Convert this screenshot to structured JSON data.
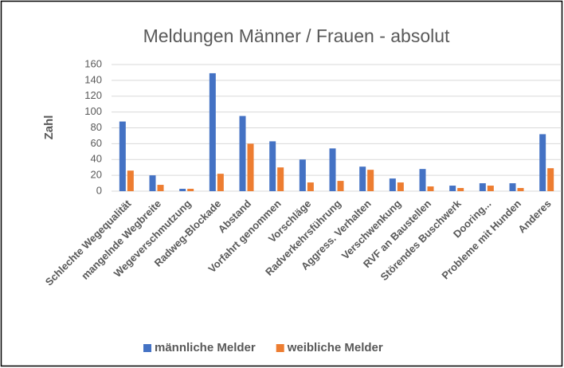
{
  "chart_data": {
    "type": "bar",
    "title": "Meldungen Männer / Frauen - absolut",
    "y_label": "Zahl",
    "categories": [
      "Schlechte Wegequalität",
      "mangelnde Wegbreite",
      "Wegeverschmutzung",
      "Radweg-Blockade",
      "Abstand",
      "Vorfahrt genommen",
      "Vorschläge",
      "Radverkehrsführung",
      "Aggress. Verhalten",
      "Verschwenkung",
      "RVF an Baustellen",
      "Störendes Buschwerk",
      "Dooring...",
      "Probleme mit Hunden",
      "Anderes"
    ],
    "series": [
      {
        "name": "männliche Melder",
        "color": "#4472c4",
        "values": [
          88,
          20,
          3,
          149,
          95,
          63,
          40,
          54,
          31,
          16,
          28,
          7,
          10,
          10,
          72
        ]
      },
      {
        "name": "weibliche Melder",
        "color": "#ed7d31",
        "values": [
          26,
          8,
          3,
          22,
          60,
          30,
          11,
          13,
          27,
          11,
          6,
          4,
          7,
          4,
          29
        ]
      }
    ],
    "ylim": [
      0,
      160
    ],
    "yticks": [
      0,
      20,
      40,
      60,
      80,
      100,
      120,
      140,
      160
    ],
    "grid": true,
    "legend": "bottom"
  }
}
